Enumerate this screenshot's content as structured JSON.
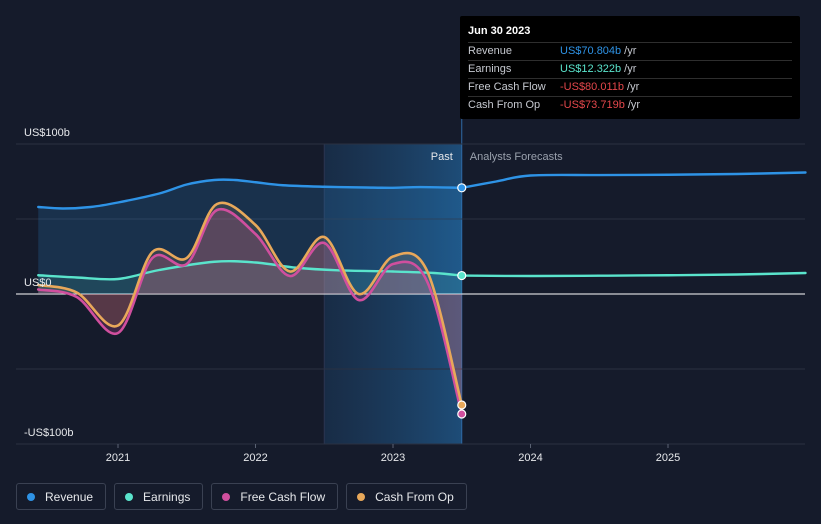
{
  "chart_data": {
    "type": "line",
    "x_unit": "year",
    "xlim": [
      2020.42,
      2026.0
    ],
    "ylim": [
      -100,
      100
    ],
    "y_ticks": [
      {
        "value": 100,
        "label": "US$100b"
      },
      {
        "value": 0,
        "label": "US$0"
      },
      {
        "value": -100,
        "label": "-US$100b"
      }
    ],
    "x_ticks": [
      {
        "value": 2021,
        "label": "2021"
      },
      {
        "value": 2022,
        "label": "2022"
      },
      {
        "value": 2023,
        "label": "2023"
      },
      {
        "value": 2024,
        "label": "2024"
      },
      {
        "value": 2025,
        "label": "2025"
      }
    ],
    "past_label": "Past",
    "forecast_label": "Analysts Forecasts",
    "past_region": [
      2022.5,
      2023.5
    ],
    "divider_x": 2023.5,
    "series": [
      {
        "name": "Revenue",
        "color": "#2e93e6",
        "values": [
          [
            2020.42,
            58
          ],
          [
            2020.6,
            57
          ],
          [
            2020.8,
            58
          ],
          [
            2021.0,
            61
          ],
          [
            2021.3,
            67
          ],
          [
            2021.5,
            73
          ],
          [
            2021.7,
            76
          ],
          [
            2021.85,
            76
          ],
          [
            2022.0,
            74.5
          ],
          [
            2022.2,
            72.5
          ],
          [
            2022.5,
            71.5
          ],
          [
            2022.8,
            71
          ],
          [
            2023.0,
            70.8
          ],
          [
            2023.2,
            71.3
          ],
          [
            2023.5,
            70.8
          ]
        ],
        "forecast": [
          [
            2023.5,
            70.8
          ],
          [
            2023.75,
            75
          ],
          [
            2024.0,
            79
          ],
          [
            2024.5,
            79.3
          ],
          [
            2025.0,
            79.5
          ],
          [
            2025.5,
            80
          ],
          [
            2026.0,
            81
          ]
        ]
      },
      {
        "name": "Earnings",
        "color": "#5ae4cc",
        "values": [
          [
            2020.42,
            12.5
          ],
          [
            2020.7,
            11
          ],
          [
            2021.0,
            10
          ],
          [
            2021.3,
            16
          ],
          [
            2021.7,
            21.5
          ],
          [
            2022.0,
            21
          ],
          [
            2022.3,
            17.5
          ],
          [
            2022.6,
            15.8
          ],
          [
            2023.0,
            15
          ],
          [
            2023.3,
            14
          ],
          [
            2023.5,
            12.3
          ]
        ],
        "forecast": [
          [
            2023.5,
            12.3
          ],
          [
            2024.0,
            12
          ],
          [
            2024.5,
            12.2
          ],
          [
            2025.0,
            12.5
          ],
          [
            2025.5,
            13
          ],
          [
            2026.0,
            14
          ]
        ]
      },
      {
        "name": "Free Cash Flow",
        "color": "#d04f9e",
        "values": [
          [
            2020.42,
            3
          ],
          [
            2020.7,
            -2
          ],
          [
            2021.0,
            -26
          ],
          [
            2021.25,
            24
          ],
          [
            2021.5,
            20
          ],
          [
            2021.72,
            56
          ],
          [
            2022.0,
            40
          ],
          [
            2022.25,
            12
          ],
          [
            2022.5,
            34
          ],
          [
            2022.75,
            -4
          ],
          [
            2023.0,
            20
          ],
          [
            2023.25,
            8
          ],
          [
            2023.5,
            -80
          ]
        ]
      },
      {
        "name": "Cash From Op",
        "color": "#e8a85a",
        "values": [
          [
            2020.42,
            6
          ],
          [
            2020.7,
            1
          ],
          [
            2021.0,
            -21
          ],
          [
            2021.25,
            28
          ],
          [
            2021.5,
            24
          ],
          [
            2021.72,
            60
          ],
          [
            2022.0,
            46
          ],
          [
            2022.25,
            15
          ],
          [
            2022.5,
            38
          ],
          [
            2022.75,
            0
          ],
          [
            2023.0,
            25
          ],
          [
            2023.25,
            15
          ],
          [
            2023.5,
            -74
          ]
        ]
      }
    ]
  },
  "tooltip": {
    "date": "Jun 30 2023",
    "rows": [
      {
        "label": "Revenue",
        "value": "US$70.804b",
        "unit": "/yr",
        "color": "#2e93e6"
      },
      {
        "label": "Earnings",
        "value": "US$12.322b",
        "unit": "/yr",
        "color": "#5ae4cc"
      },
      {
        "label": "Free Cash Flow",
        "value": "-US$80.011b",
        "unit": "/yr",
        "color": "#e4474b"
      },
      {
        "label": "Cash From Op",
        "value": "-US$73.719b",
        "unit": "/yr",
        "color": "#e4474b"
      }
    ]
  },
  "legend": [
    {
      "label": "Revenue",
      "color": "#2e93e6"
    },
    {
      "label": "Earnings",
      "color": "#5ae4cc"
    },
    {
      "label": "Free Cash Flow",
      "color": "#d04f9e"
    },
    {
      "label": "Cash From Op",
      "color": "#e8a85a"
    }
  ]
}
